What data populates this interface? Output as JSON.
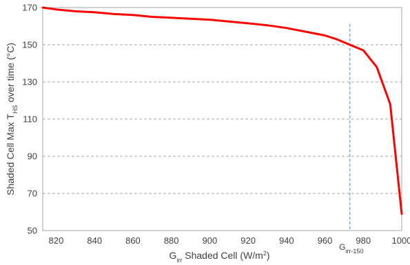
{
  "chart_data": {
    "type": "line",
    "title": "",
    "xlabel": {
      "main": "G",
      "sub": "irr",
      "rest": " Shaded Cell (W/m",
      "sup": "2",
      "end": ")"
    },
    "ylabel": {
      "main": "Shaded Cell Max T",
      "sub": "HS",
      "rest": " over time (°C)"
    },
    "xlim": [
      813,
      1000
    ],
    "ylim": [
      50,
      170
    ],
    "xticks": [
      820,
      840,
      860,
      880,
      900,
      920,
      940,
      960,
      980,
      1000
    ],
    "yticks": [
      50,
      70,
      90,
      110,
      130,
      150,
      170
    ],
    "grid": "horizontal-dashed",
    "series": [
      {
        "color": "#ff0000",
        "x": [
          813,
          820,
          830,
          840,
          850,
          860,
          870,
          880,
          890,
          900,
          910,
          920,
          930,
          940,
          950,
          960,
          966,
          973,
          980,
          987,
          994,
          1000
        ],
        "y": [
          170,
          169,
          168,
          167.5,
          166.5,
          166,
          165,
          164.5,
          164,
          163.5,
          162.5,
          161.5,
          160.5,
          159,
          157,
          155,
          153,
          150,
          147,
          138,
          118,
          59
        ]
      }
    ],
    "annotations": [
      {
        "type": "vline",
        "x": 973,
        "color": "#5b9bd5",
        "label": {
          "main": "G",
          "sub": "irr-150"
        }
      }
    ]
  }
}
